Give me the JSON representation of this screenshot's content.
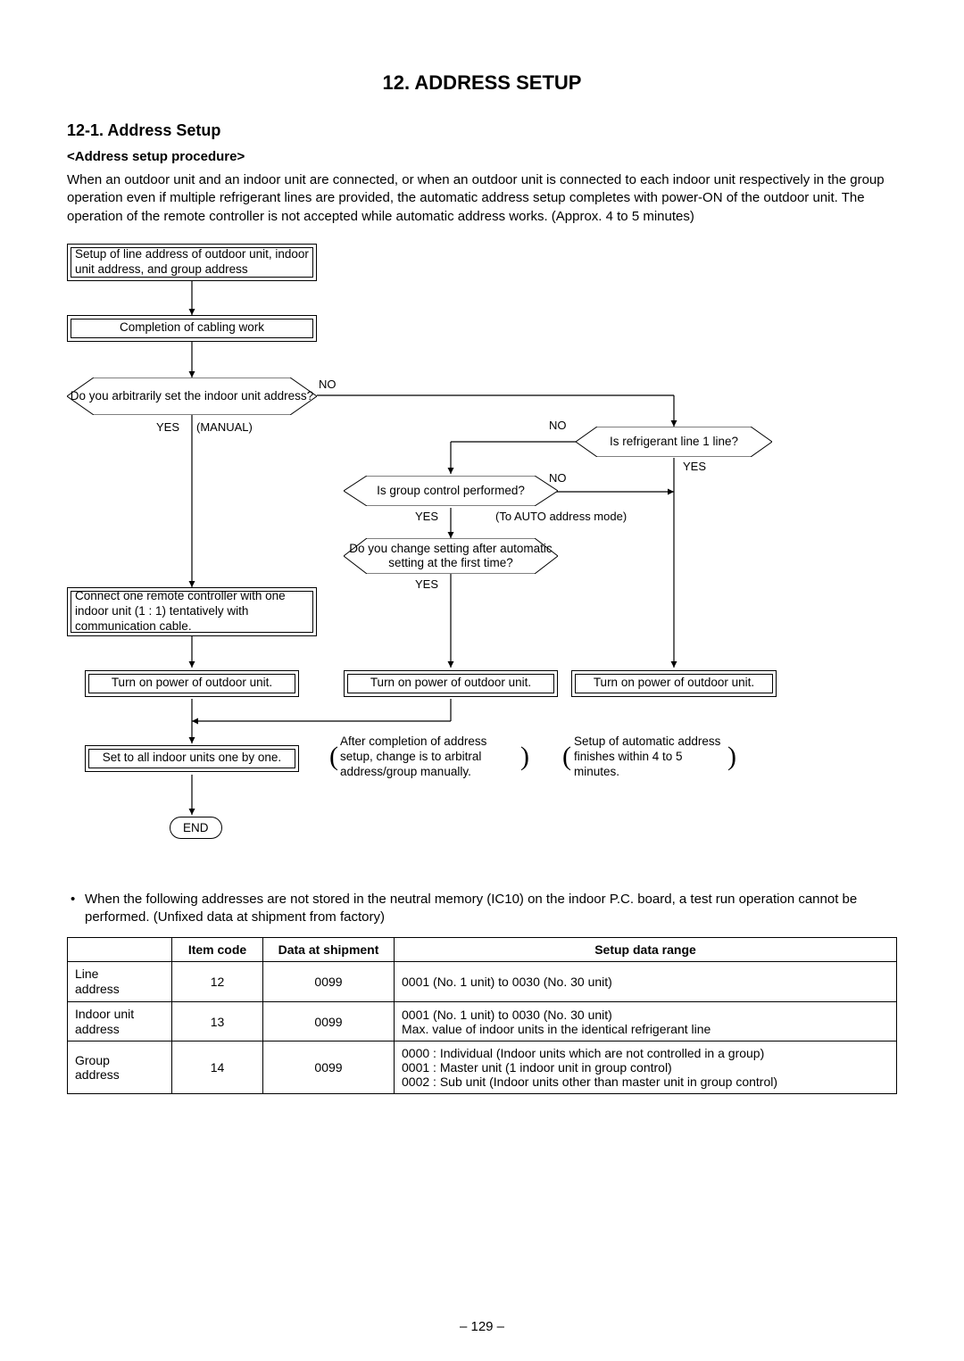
{
  "title": "12.  ADDRESS SETUP",
  "section": "12-1.  Address Setup",
  "subheading": "<Address setup procedure>",
  "intro": "When an outdoor unit and an indoor unit are connected, or when an outdoor unit is connected to each indoor unit respectively in the group operation even if multiple refrigerant lines are provided, the automatic address setup completes with power-ON of the outdoor unit. The operation of the remote controller is not accepted while automatic address works. (Approx. 4 to 5 minutes)",
  "flow": {
    "n1": "Setup of line address of outdoor unit, indoor unit address, and group address",
    "n2": "Completion of cabling work",
    "d1": "Do you arbitrarily set the indoor unit address?",
    "d2": "Is refrigerant line 1 line?",
    "d3": "Is group control performed?",
    "d4": "Do you change setting after automatic setting at the first time?",
    "n3": "Connect one remote controller with one indoor unit (1 : 1) tentatively with communication cable.",
    "n4a": "Turn on power of outdoor unit.",
    "n4b": "Turn on power of outdoor unit.",
    "n4c": "Turn on power of outdoor unit.",
    "n5": "Set to all indoor units one by one.",
    "note1": "After completion of address setup, change is to arbitral address/group manually.",
    "note2": "Setup of automatic address finishes within 4 to 5 minutes.",
    "end": "END",
    "labels": {
      "yes": "YES",
      "no": "NO",
      "manual": "(MANUAL)",
      "toauto": "(To AUTO address mode)"
    }
  },
  "bullet": "When the following addresses are not stored in the neutral memory (IC10) on the indoor P.C. board, a test run operation cannot be performed. (Unfixed data at shipment from factory)",
  "table": {
    "headers": {
      "c1": "",
      "c2": "Item code",
      "c3": "Data at shipment",
      "c4": "Setup data range"
    },
    "rows": [
      {
        "name": "Line\naddress",
        "code": "12",
        "ship": "0099",
        "range": "0001 (No. 1 unit) to 0030 (No. 30 unit)"
      },
      {
        "name": "Indoor unit\naddress",
        "code": "13",
        "ship": "0099",
        "range": "0001 (No. 1 unit) to 0030 (No. 30 unit)\nMax. value of indoor units in the identical refrigerant line"
      },
      {
        "name": "Group\naddress",
        "code": "14",
        "ship": "0099",
        "range": "0000 : Individual (Indoor units which are not controlled in a group)\n0001 : Master unit (1 indoor unit in group control)\n0002 : Sub unit (Indoor units other than master unit in group control)"
      }
    ]
  },
  "pagenum": "– 129 –"
}
